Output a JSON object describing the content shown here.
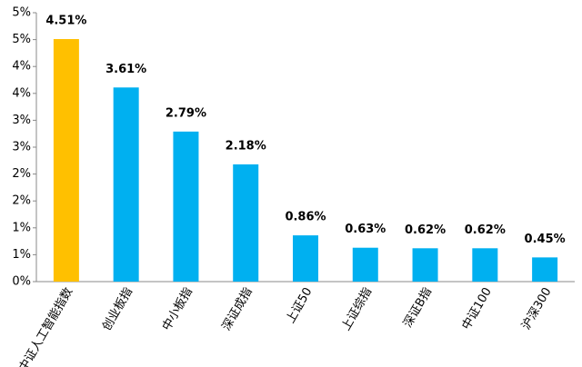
{
  "chart_data": {
    "type": "bar",
    "categories": [
      "中证人工智能指数",
      "创业板指",
      "中小板指",
      "深证成指",
      "上证50",
      "上证综指",
      "深证B指",
      "中证100",
      "沪深300"
    ],
    "values": [
      4.51,
      3.61,
      2.79,
      2.18,
      0.86,
      0.63,
      0.62,
      0.62,
      0.45
    ],
    "value_labels": [
      "4.51%",
      "3.61%",
      "2.79%",
      "2.18%",
      "0.86%",
      "0.63%",
      "0.62%",
      "0.62%",
      "0.45%"
    ],
    "colors": [
      "#FFC000",
      "#00B0F0",
      "#00B0F0",
      "#00B0F0",
      "#00B0F0",
      "#00B0F0",
      "#00B0F0",
      "#00B0F0",
      "#00B0F0"
    ],
    "ylim": [
      0,
      5
    ],
    "yticks": [
      {
        "value": 0,
        "label": "0%"
      },
      {
        "value": 0.5,
        "label": "1%"
      },
      {
        "value": 1,
        "label": "1%"
      },
      {
        "value": 1.5,
        "label": "2%"
      },
      {
        "value": 2,
        "label": "2%"
      },
      {
        "value": 2.5,
        "label": "3%"
      },
      {
        "value": 3,
        "label": "3%"
      },
      {
        "value": 3.5,
        "label": "4%"
      },
      {
        "value": 4,
        "label": "4%"
      },
      {
        "value": 4.5,
        "label": "5%"
      },
      {
        "value": 5,
        "label": "5%"
      }
    ],
    "grid": false
  }
}
